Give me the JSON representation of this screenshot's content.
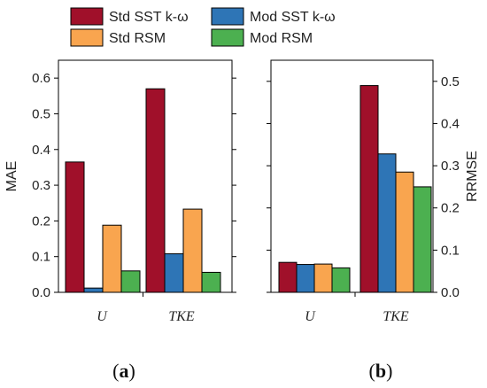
{
  "legend": {
    "entries": [
      {
        "label": "Std SST k-ω",
        "color": "#a0102a"
      },
      {
        "label": "Mod SST k-ω",
        "color": "#2e75b6"
      },
      {
        "label": "Std RSM",
        "color": "#f9a54f"
      },
      {
        "label": "Mod RSM",
        "color": "#4cb050"
      }
    ]
  },
  "chart_data": [
    {
      "type": "bar",
      "panel_label": "a",
      "categories": [
        "U",
        "TKE"
      ],
      "series": [
        {
          "name": "Std SST k-ω",
          "values": [
            0.365,
            0.57
          ]
        },
        {
          "name": "Mod SST k-ω",
          "values": [
            0.012,
            0.108
          ]
        },
        {
          "name": "Std RSM",
          "values": [
            0.188,
            0.233
          ]
        },
        {
          "name": "Mod RSM",
          "values": [
            0.06,
            0.056
          ]
        }
      ],
      "ylabel": "MAE",
      "ylim": [
        0,
        0.65
      ],
      "yticks": [
        "0.0",
        "0.1",
        "0.2",
        "0.3",
        "0.4",
        "0.5",
        "0.6"
      ],
      "ytick_values": [
        0,
        0.1,
        0.2,
        0.3,
        0.4,
        0.5,
        0.6
      ],
      "yaxis_side": "left",
      "grid": false
    },
    {
      "type": "bar",
      "panel_label": "b",
      "categories": [
        "U",
        "TKE"
      ],
      "series": [
        {
          "name": "Std SST k-ω",
          "values": [
            0.071,
            0.49
          ]
        },
        {
          "name": "Mod SST k-ω",
          "values": [
            0.066,
            0.328
          ]
        },
        {
          "name": "Std RSM",
          "values": [
            0.067,
            0.285
          ]
        },
        {
          "name": "Mod RSM",
          "values": [
            0.058,
            0.25
          ]
        }
      ],
      "ylabel": "RRMSE",
      "ylim": [
        0,
        0.55
      ],
      "yticks": [
        "0.0",
        "0.1",
        "0.2",
        "0.3",
        "0.4",
        "0.5"
      ],
      "ytick_values": [
        0,
        0.1,
        0.2,
        0.3,
        0.4,
        0.5
      ],
      "yaxis_side": "right",
      "grid": false
    }
  ]
}
